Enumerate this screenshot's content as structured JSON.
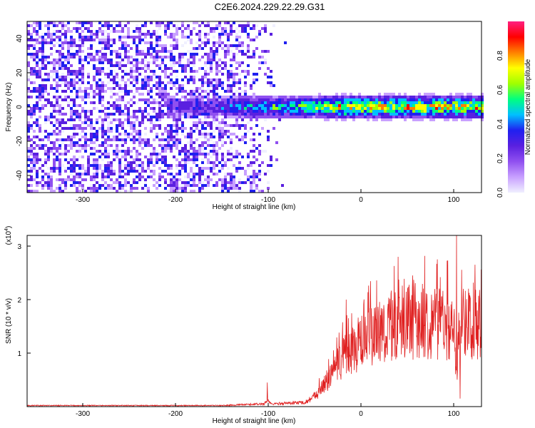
{
  "title": "C2E6.2024.229.22.29.G31",
  "colors": {
    "trace": "#e02020",
    "axis": "#000000",
    "background": "#ffffff",
    "colormap": [
      "#f0f0ff",
      "#c8a0ff",
      "#9050f0",
      "#5a20e0",
      "#2020f0",
      "#00c0ff",
      "#00ff80",
      "#a0ff00",
      "#ffff00",
      "#ff8000",
      "#ff0000",
      "#ff2080"
    ]
  },
  "chart_data": [
    {
      "type": "heatmap",
      "xlabel": "Height of straight line (km)",
      "ylabel": "Frequency (Hz)",
      "xlim": [
        -360,
        130
      ],
      "ylim": [
        -50,
        50
      ],
      "x_ticks": [
        -300,
        -200,
        -100,
        0,
        100
      ],
      "y_ticks": [
        -40,
        -20,
        0,
        20,
        40
      ],
      "grid": false,
      "colorbar": {
        "label": "Normalized spectral amplitude",
        "range": [
          0.0,
          1.0
        ],
        "ticks": [
          "0.0",
          "0.2",
          "0.4",
          "0.6",
          "0.8"
        ]
      },
      "description_values": {
        "noise_region_x": [
          -360,
          -150
        ],
        "signal_band_center_hz": 0,
        "signal_band_halfwidth_hz": 5,
        "peak_region_x": [
          -30,
          130
        ],
        "peak_amplitude": 0.85
      }
    },
    {
      "type": "line",
      "xlabel": "Height of straight line (km)",
      "ylabel": "SNR (10 * v/v)",
      "yscale_label": "(x10",
      "yscale_exponent": "4",
      "yscale_close": ")",
      "xlim": [
        -360,
        130
      ],
      "ylim": [
        0,
        3.2
      ],
      "x_ticks": [
        -300,
        -200,
        -100,
        0,
        100
      ],
      "y_ticks": [
        1,
        2,
        3
      ],
      "grid": false,
      "series": [
        {
          "color": "#e02020",
          "anchors_x": [
            -360,
            -150,
            -105,
            -100,
            -97,
            -60,
            -50,
            -40,
            -30,
            -20,
            -10,
            0,
            20,
            40,
            60,
            80,
            95,
            100,
            103,
            106,
            110,
            120,
            130
          ],
          "anchors_y_mean": [
            0.02,
            0.02,
            0.05,
            0.12,
            0.05,
            0.08,
            0.2,
            0.4,
            0.65,
            0.9,
            1.05,
            1.2,
            1.4,
            1.55,
            1.6,
            1.6,
            1.55,
            1.3,
            0.4,
            1.5,
            1.6,
            1.6,
            1.6
          ],
          "notable_peaks": [
            {
              "x": -101,
              "y": 0.45
            },
            {
              "x": -16,
              "y": 2.0
            },
            {
              "x": 40,
              "y": 2.8
            },
            {
              "x": 103,
              "y": 3.2
            },
            {
              "x": 107,
              "y": 0.15
            }
          ]
        }
      ]
    }
  ]
}
